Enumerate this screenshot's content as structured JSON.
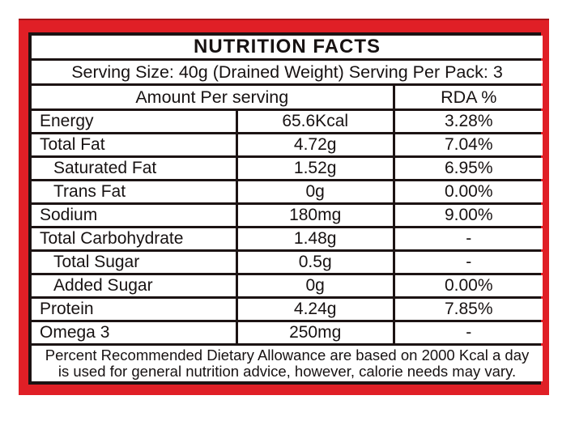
{
  "colors": {
    "frame_red": "#e01f26",
    "line_black": "#1c1313",
    "paper": "#ffffff",
    "text": "#171212"
  },
  "label": {
    "title": "NUTRITION FACTS",
    "serving_info": "Serving Size: 40g (Drained Weight) Serving Per Pack: 3",
    "columns": {
      "amount": "Amount Per serving",
      "rda": "RDA %"
    },
    "rows": [
      {
        "name": "Energy",
        "amount": "65.6Kcal",
        "rda": "3.28%"
      },
      {
        "name": "Total Fat",
        "amount": "4.72g",
        "rda": "7.04%"
      },
      {
        "name": "Saturated Fat",
        "amount": "1.52g",
        "rda": "6.95%"
      },
      {
        "name": "Trans Fat",
        "amount": "0g",
        "rda": "0.00%"
      },
      {
        "name": "Sodium",
        "amount": "180mg",
        "rda": "9.00%"
      },
      {
        "name": "Total Carbohydrate",
        "amount": "1.48g",
        "rda": "-"
      },
      {
        "name": "Total Sugar",
        "amount": "0.5g",
        "rda": "-"
      },
      {
        "name": "Added Sugar",
        "amount": "0g",
        "rda": "0.00%"
      },
      {
        "name": "Protein",
        "amount": "4.24g",
        "rda": "7.85%"
      },
      {
        "name": "Omega 3",
        "amount": "250mg",
        "rda": "-"
      }
    ],
    "footnote": {
      "line1": "Percent Recommended Dietary Allowance are based on 2000 Kcal a day",
      "line2": "is used for general nutrition advice, however, calorie needs may vary."
    }
  }
}
